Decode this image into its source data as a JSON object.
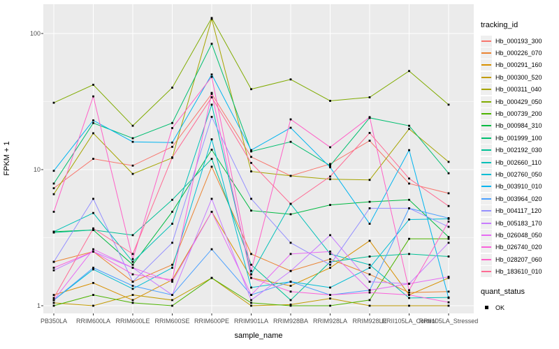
{
  "chart_data": {
    "type": "line",
    "title": "",
    "xlabel": "sample_name",
    "ylabel": "FPKM + 1",
    "y_scale": "log10",
    "ylim": [
      0.88,
      165
    ],
    "grid": "on",
    "y_ticks": [
      {
        "label": "1",
        "value": 1
      },
      {
        "label": "10",
        "value": 10
      },
      {
        "label": "100",
        "value": 100
      }
    ],
    "y_minor_ticks": [
      3.162,
      31.62
    ],
    "legend_position": "right",
    "legend_title": "tracking_id",
    "categories": [
      "PB350LA",
      "RRIM600LA",
      "RRIM600LE",
      "RRIM600SE",
      "RRIM600PE",
      "RRIM901LA",
      "RRIM928BA",
      "RRIM928LA",
      "RRIM928LE",
      "RRII105LA_Control",
      "RRII105LA_Stressed"
    ],
    "points": {
      "marker": "filled-square",
      "color": "#000000"
    },
    "series": [
      {
        "name": "Hb_000193_300",
        "color": "#F8766D",
        "values": [
          7.3,
          12.0,
          10.7,
          14.7,
          36.0,
          12.4,
          9.0,
          11.0,
          16.3,
          7.9,
          6.7
        ]
      },
      {
        "name": "Hb_000226_070",
        "color": "#EA8331",
        "values": [
          2.1,
          2.5,
          1.5,
          2.0,
          10.5,
          2.4,
          1.8,
          2.2,
          1.7,
          1.25,
          1.27
        ]
      },
      {
        "name": "Hb_000291_160",
        "color": "#D89000",
        "values": [
          1.2,
          1.47,
          1.1,
          1.55,
          4.9,
          1.6,
          1.4,
          1.9,
          3.0,
          1.2,
          1.6
        ]
      },
      {
        "name": "Hb_000300_520",
        "color": "#C29B00",
        "values": [
          1.05,
          1.0,
          1.2,
          1.1,
          1.6,
          1.0,
          1.02,
          1.13,
          1.0,
          1.0,
          1.0
        ]
      },
      {
        "name": "Hb_000311_040",
        "color": "#A6A400",
        "values": [
          6.6,
          18.5,
          9.3,
          12.2,
          128.0,
          9.7,
          9.0,
          8.5,
          8.4,
          19.9,
          11.4
        ]
      },
      {
        "name": "Hb_000429_050",
        "color": "#80AB00",
        "values": [
          31.0,
          42.0,
          21.0,
          40.0,
          130.0,
          39.0,
          46.0,
          32.0,
          34.0,
          53.0,
          30.0
        ]
      },
      {
        "name": "Hb_000739_200",
        "color": "#4CB400",
        "values": [
          1.0,
          1.2,
          1.05,
          1.0,
          1.6,
          1.05,
          1.0,
          1.0,
          1.1,
          3.1,
          3.1
        ]
      },
      {
        "name": "Hb_000984_310",
        "color": "#00BA42",
        "values": [
          3.5,
          3.6,
          2.0,
          4.9,
          14.0,
          5.0,
          4.7,
          5.5,
          5.8,
          6.0,
          3.2
        ]
      },
      {
        "name": "Hb_001999_100",
        "color": "#00BE70",
        "values": [
          7.9,
          22.0,
          17.0,
          22.0,
          84.0,
          13.6,
          16.0,
          10.7,
          24.0,
          21.0,
          9.4
        ]
      },
      {
        "name": "Hb_002192_030",
        "color": "#00C096",
        "values": [
          3.45,
          3.6,
          3.3,
          6.0,
          12.0,
          2.0,
          1.1,
          2.1,
          2.3,
          2.4,
          2.3
        ]
      },
      {
        "name": "Hb_002660_110",
        "color": "#00C0B8",
        "values": [
          3.5,
          4.8,
          2.1,
          4.0,
          30.0,
          1.7,
          5.6,
          2.4,
          2.0,
          1.14,
          1.15
        ]
      },
      {
        "name": "Hb_002760_050",
        "color": "#00BDD4",
        "values": [
          1.1,
          1.85,
          1.33,
          1.9,
          16.7,
          1.36,
          1.5,
          1.36,
          1.9,
          4.3,
          4.35
        ]
      },
      {
        "name": "Hb_003910_010",
        "color": "#00B4F0",
        "values": [
          9.8,
          23.0,
          16.0,
          15.8,
          50.0,
          13.9,
          20.3,
          10.4,
          4.0,
          13.9,
          1.14
        ]
      },
      {
        "name": "Hb_003964_020",
        "color": "#4BA0FF",
        "values": [
          1.1,
          1.9,
          1.4,
          1.2,
          2.6,
          1.2,
          1.5,
          1.2,
          1.3,
          5.2,
          4.4
        ]
      },
      {
        "name": "Hb_004117_120",
        "color": "#9590FF",
        "values": [
          2.1,
          6.1,
          1.5,
          2.9,
          24.4,
          6.1,
          2.9,
          2.0,
          5.2,
          5.2,
          3.8
        ]
      },
      {
        "name": "Hb_005183_170",
        "color": "#C77CFF",
        "values": [
          1.82,
          2.5,
          1.9,
          1.2,
          6.1,
          1.1,
          1.8,
          3.3,
          1.5,
          1.45,
          2.9
        ]
      },
      {
        "name": "Hb_026048_050",
        "color": "#E76BF3",
        "values": [
          1.1,
          2.6,
          1.9,
          1.5,
          4.9,
          1.2,
          2.4,
          2.5,
          1.3,
          1.45,
          1.63
        ]
      },
      {
        "name": "Hb_026740_020",
        "color": "#FA62DB",
        "values": [
          1.9,
          2.5,
          1.7,
          1.55,
          36.6,
          1.6,
          1.27,
          1.2,
          1.25,
          1.2,
          1.06
        ]
      },
      {
        "name": "Hb_028207_060",
        "color": "#FF61C7",
        "values": [
          4.9,
          34.5,
          2.2,
          20.2,
          48.0,
          1.8,
          23.4,
          14.6,
          24.3,
          1.3,
          4.15
        ]
      },
      {
        "name": "Hb_183610_010",
        "color": "#FF6B94",
        "values": [
          1.14,
          3.7,
          2.4,
          12.3,
          34.0,
          11.2,
          5.6,
          8.9,
          18.6,
          8.6,
          5.4
        ]
      }
    ],
    "quant_status": {
      "title": "quant_status",
      "items": [
        {
          "label": "OK"
        }
      ],
      "marker": "filled-square",
      "marker_color": "#000000"
    }
  },
  "theme": {
    "panel_bg": "#EBEBEB",
    "grid_color": "#FFFFFF",
    "tick_color": "#333333",
    "tick_label_color": "#4D4D4D",
    "legend_key_bg": "#EFEFEF"
  }
}
